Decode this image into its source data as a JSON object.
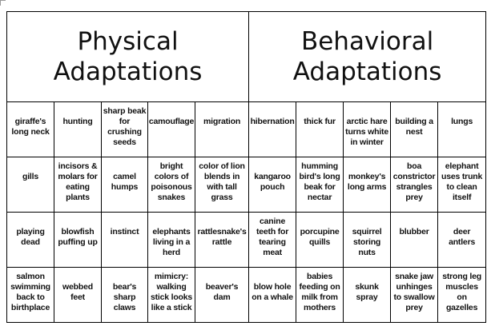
{
  "headers": [
    "Physical\nAdaptations",
    "Behavioral\nAdaptations"
  ],
  "rows": [
    [
      "giraffe's\nlong neck",
      "hunting",
      "sharp beak\nfor\ncrushing\nseeds",
      "camouflage",
      "migration",
      "hibernation",
      "thick fur",
      "arctic hare\nturns white\nin winter",
      "building a\nnest",
      "lungs"
    ],
    [
      "gills",
      "incisors &\nmolars for\neating\nplants",
      "camel\nhumps",
      "bright\ncolors of\npoisonous\nsnakes",
      "color of lion\nblends in\nwith tall\ngrass",
      "kangaroo\npouch",
      "humming\nbird's long\nbeak for\nnectar",
      "monkey's\nlong arms",
      "boa\nconstrictor\nstrangles\nprey",
      "elephant\nuses trunk\nto clean\nitself"
    ],
    [
      "playing\ndead",
      "blowfish\npuffing up",
      "instinct",
      "elephants\nliving in a\nherd",
      "rattlesnake's\nrattle",
      "canine\nteeth for\ntearing\nmeat",
      "porcupine\nquills",
      "squirrel\nstoring\nnuts",
      "blubber",
      "deer\nantlers"
    ],
    [
      "salmon\nswimming\nback to\nbirthplace",
      "webbed\nfeet",
      "bear's\nsharp\nclaws",
      "mimicry:\nwalking\nstick looks\nlike a stick",
      "beaver's\ndam",
      "blow hole\non a whale",
      "babies\nfeeding on\nmilk from\nmothers",
      "skunk\nspray",
      "snake jaw\nunhinges\nto swallow\nprey",
      "strong leg\nmuscles\non\ngazelles"
    ]
  ]
}
